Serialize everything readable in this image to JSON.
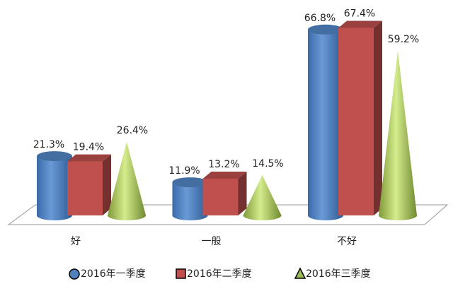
{
  "chart_data": {
    "type": "bar",
    "categories": [
      "好",
      "一般",
      "不好"
    ],
    "series": [
      {
        "name": "2016年一季度",
        "color": "#4f81bd",
        "values": [
          21.3,
          11.9,
          66.8
        ],
        "value_labels": [
          "21.3%",
          "11.9%",
          "66.8%"
        ]
      },
      {
        "name": "2016年二季度",
        "color": "#c0504d",
        "values": [
          19.4,
          13.2,
          67.4
        ],
        "value_labels": [
          "19.4%",
          "13.2%",
          "67.4%"
        ]
      },
      {
        "name": "2016年三季度",
        "color": "#9bbb59",
        "values": [
          26.4,
          14.5,
          59.2
        ],
        "value_labels": [
          "26.4%",
          "14.5%",
          "59.2%"
        ]
      }
    ]
  }
}
